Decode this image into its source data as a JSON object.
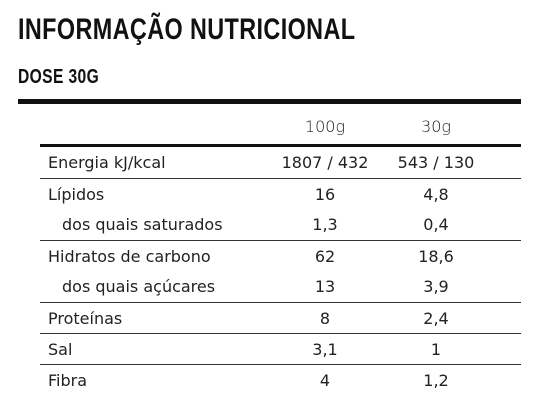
{
  "header": {
    "title": "INFORMAÇÃO NUTRICIONAL",
    "subtitle": "DOSE 30G"
  },
  "table": {
    "columns": [
      "100g",
      "30g"
    ],
    "rows": [
      {
        "label": "Energia kJ/kcal",
        "v1": "1807 / 432",
        "v2": "543 / 130"
      },
      {
        "label": "Lípidos",
        "v1": "16",
        "v2": "4,8"
      },
      {
        "label": "dos quais saturados",
        "v1": "1,3",
        "v2": "0,4"
      },
      {
        "label": "Hidratos de carbono",
        "v1": "62",
        "v2": "18,6"
      },
      {
        "label": "dos quais açúcares",
        "v1": "13",
        "v2": "3,9"
      },
      {
        "label": "Proteínas",
        "v1": "8",
        "v2": "2,4"
      },
      {
        "label": "Sal",
        "v1": "3,1",
        "v2": "1"
      },
      {
        "label": "Fibra",
        "v1": "4",
        "v2": "1,2"
      }
    ]
  }
}
